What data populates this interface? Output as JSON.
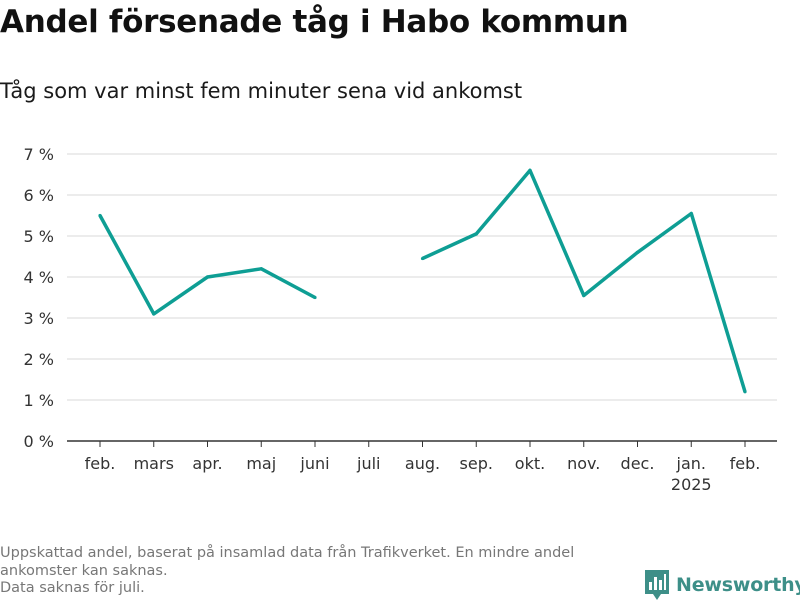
{
  "header": {
    "title": "Andel försenade tåg i Habo kommun",
    "subtitle": "Tåg som var minst fem minuter sena vid ankomst"
  },
  "chart_data": {
    "type": "line",
    "title": "Andel försenade tåg i Habo kommun",
    "subtitle": "Tåg som var minst fem minuter sena vid ankomst",
    "categories": [
      "feb.",
      "mars",
      "apr.",
      "maj",
      "juni",
      "juli",
      "aug.",
      "sep.",
      "okt.",
      "nov.",
      "dec.",
      "jan.",
      "feb."
    ],
    "year_labels": [
      "",
      "",
      "",
      "",
      "",
      "",
      "",
      "",
      "",
      "",
      "",
      "2025",
      ""
    ],
    "series": [
      {
        "values": [
          5.5,
          3.1,
          4.0,
          4.2,
          3.5,
          null,
          4.45,
          5.05,
          6.6,
          3.55,
          4.6,
          5.55,
          1.2
        ]
      }
    ],
    "yticks": [
      0,
      1,
      2,
      3,
      4,
      5,
      6,
      7
    ],
    "ytick_labels": [
      "0 %",
      "1 %",
      "2 %",
      "3 %",
      "4 %",
      "5 %",
      "6 %",
      "7 %"
    ],
    "ylim": [
      0,
      7
    ],
    "xlabel": "",
    "ylabel": "",
    "grid": true,
    "line_color": "#0e9e94"
  },
  "footnote": {
    "line1": "Uppskattad andel, baserat på insamlad data från Trafikverket. En mindre andel",
    "line2": "ankomster kan saknas.",
    "line3": "Data saknas för juli."
  },
  "brand": {
    "name": "Newsworthy",
    "icon": "bar-chart-logo-icon",
    "color": "#3d8f88"
  }
}
